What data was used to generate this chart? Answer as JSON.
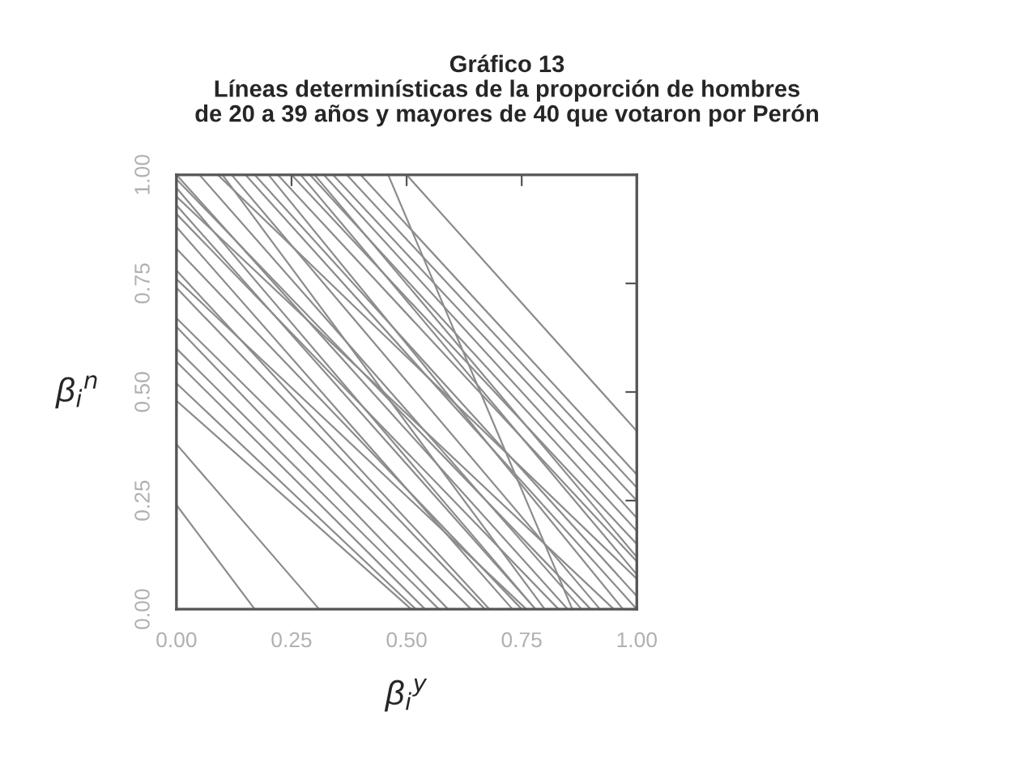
{
  "chart_data": {
    "type": "line",
    "title": "Gráfico 13\nLíneas determinísticas de la proporción de hombres\nde 20 a 39 años y mayores de 40 que votaron por Perón",
    "xlabel": "β$_{i}$$^{y}$",
    "ylabel": "β$_{i}$$^{n}$",
    "xlim": [
      0,
      1
    ],
    "ylim": [
      0,
      1
    ],
    "xticks": [
      {
        "value": 0,
        "label": "0.00"
      },
      {
        "value": 0.25,
        "label": "0.25"
      },
      {
        "value": 0.5,
        "label": "0.50"
      },
      {
        "value": 0.75,
        "label": "0.75"
      },
      {
        "value": 1,
        "label": "1.00"
      }
    ],
    "yticks": [
      {
        "value": 0,
        "label": "0.00"
      },
      {
        "value": 0.25,
        "label": "0.25"
      },
      {
        "value": 0.5,
        "label": "0.50"
      },
      {
        "value": 0.75,
        "label": "0.75"
      },
      {
        "value": 1,
        "label": "1.00"
      }
    ],
    "grid": false,
    "marker": "none",
    "line_style": "solid",
    "series": [
      {
        "color": "#8c8c8c",
        "x": [
          0,
          0.17
        ],
        "values": [
          0.24,
          0
        ]
      },
      {
        "color": "#8c8c8c",
        "x": [
          0,
          0.31
        ],
        "values": [
          0.38,
          0
        ]
      },
      {
        "color": "#8c8c8c",
        "x": [
          0,
          0.51
        ],
        "values": [
          0.48,
          0
        ]
      },
      {
        "color": "#8c8c8c",
        "x": [
          0,
          0.52
        ],
        "values": [
          0.52,
          0
        ]
      },
      {
        "color": "#8c8c8c",
        "x": [
          0,
          0.54
        ],
        "values": [
          0.57,
          0
        ]
      },
      {
        "color": "#8c8c8c",
        "x": [
          0,
          0.57
        ],
        "values": [
          0.6,
          0
        ]
      },
      {
        "color": "#8c8c8c",
        "x": [
          0,
          0.59
        ],
        "values": [
          0.65,
          0
        ]
      },
      {
        "color": "#8c8c8c",
        "x": [
          0,
          0.64
        ],
        "values": [
          0.67,
          0
        ]
      },
      {
        "color": "#8c8c8c",
        "x": [
          0,
          0.67
        ],
        "values": [
          0.74,
          0
        ]
      },
      {
        "color": "#8c8c8c",
        "x": [
          0,
          0.76
        ],
        "values": [
          0.76,
          0
        ]
      },
      {
        "color": "#8c8c8c",
        "x": [
          0,
          0.68
        ],
        "values": [
          0.78,
          0
        ]
      },
      {
        "color": "#8c8c8c",
        "x": [
          0,
          0.75
        ],
        "values": [
          0.83,
          0
        ]
      },
      {
        "color": "#8c8c8c",
        "x": [
          0,
          0.73
        ],
        "values": [
          0.88,
          0
        ]
      },
      {
        "color": "#8c8c8c",
        "x": [
          0,
          0.83
        ],
        "values": [
          0.91,
          0
        ]
      },
      {
        "color": "#8c8c8c",
        "x": [
          0,
          0.78
        ],
        "values": [
          0.93,
          0
        ]
      },
      {
        "color": "#8c8c8c",
        "x": [
          0,
          0.95
        ],
        "values": [
          0.95,
          0
        ]
      },
      {
        "color": "#8c8c8c",
        "x": [
          0,
          0.9
        ],
        "values": [
          0.99,
          0
        ]
      },
      {
        "color": "#8c8c8c",
        "x": [
          0,
          0.78
        ],
        "values": [
          0.97,
          0
        ]
      },
      {
        "color": "#8c8c8c",
        "x": [
          0,
          0.85
        ],
        "values": [
          1,
          0
        ]
      },
      {
        "color": "#8c8c8c",
        "x": [
          0.05,
          0.88
        ],
        "values": [
          1,
          0
        ]
      },
      {
        "color": "#8c8c8c",
        "x": [
          0.09,
          1
        ],
        "values": [
          1,
          0.07
        ]
      },
      {
        "color": "#8c8c8c",
        "x": [
          0.1,
          0.8
        ],
        "values": [
          1,
          0
        ]
      },
      {
        "color": "#8c8c8c",
        "x": [
          0.12,
          0.92
        ],
        "values": [
          1,
          0
        ]
      },
      {
        "color": "#8c8c8c",
        "x": [
          0.15,
          1
        ],
        "values": [
          1,
          0
        ]
      },
      {
        "color": "#8c8c8c",
        "x": [
          0.17,
          1
        ],
        "values": [
          1,
          0.03
        ]
      },
      {
        "color": "#8c8c8c",
        "x": [
          0.2,
          0.97
        ],
        "values": [
          1,
          0
        ]
      },
      {
        "color": "#8c8c8c",
        "x": [
          0.22,
          1
        ],
        "values": [
          1,
          0.11
        ]
      },
      {
        "color": "#8c8c8c",
        "x": [
          0.25,
          1
        ],
        "values": [
          1,
          0.15
        ]
      },
      {
        "color": "#8c8c8c",
        "x": [
          0.27,
          1
        ],
        "values": [
          1,
          0.08
        ]
      },
      {
        "color": "#8c8c8c",
        "x": [
          0.29,
          1
        ],
        "values": [
          1,
          0.18
        ]
      },
      {
        "color": "#8c8c8c",
        "x": [
          0.3,
          1
        ],
        "values": [
          1,
          0.12
        ]
      },
      {
        "color": "#8c8c8c",
        "x": [
          0.32,
          1
        ],
        "values": [
          1,
          0.21
        ]
      },
      {
        "color": "#8c8c8c",
        "x": [
          0.34,
          1
        ],
        "values": [
          1,
          0.25
        ]
      },
      {
        "color": "#8c8c8c",
        "x": [
          0.37,
          1
        ],
        "values": [
          1,
          0.28
        ]
      },
      {
        "color": "#8c8c8c",
        "x": [
          0.4,
          1
        ],
        "values": [
          1,
          0.31
        ]
      },
      {
        "color": "#8c8c8c",
        "x": [
          0.46,
          0.86
        ],
        "values": [
          1,
          0
        ]
      },
      {
        "color": "#8c8c8c",
        "x": [
          0.5,
          1
        ],
        "values": [
          1,
          0.41
        ]
      }
    ]
  }
}
